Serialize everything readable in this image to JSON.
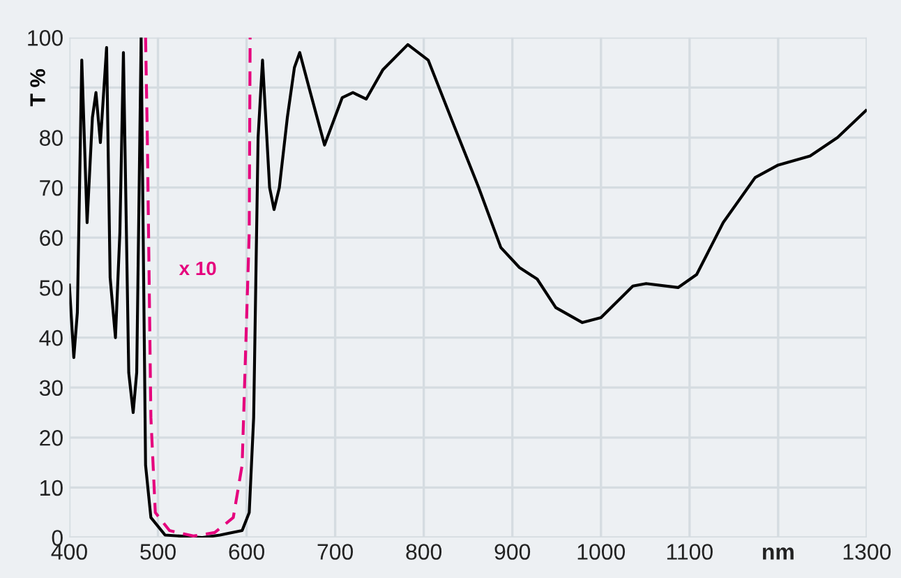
{
  "chart_data": {
    "type": "line",
    "ylabel": "T %",
    "xlim": [
      400,
      1300
    ],
    "ylim": [
      0,
      100
    ],
    "xticks": [
      400,
      500,
      600,
      700,
      800,
      900,
      1000,
      1100,
      {
        "value": 1200,
        "label": "nm"
      },
      1300
    ],
    "yticks": [
      0,
      10,
      20,
      30,
      40,
      50,
      60,
      70,
      80,
      {
        "value": 90,
        "label": null
      },
      100
    ],
    "grid": true,
    "legend": false,
    "marker": "none",
    "series": [
      {
        "color": "#000000",
        "line_style": "solid",
        "x": [
          400,
          405,
          409,
          414,
          420,
          426,
          430,
          435,
          442,
          446,
          452,
          457,
          461,
          467,
          472,
          476,
          481,
          486,
          492,
          508,
          550,
          570,
          595,
          603,
          608,
          613,
          618,
          626,
          631,
          637,
          646,
          654,
          660,
          672,
          688,
          708,
          720,
          735,
          754,
          782,
          805,
          835,
          862,
          887,
          908,
          928,
          949,
          979,
          1000,
          1036,
          1051,
          1087,
          1108,
          1138,
          1174,
          1200,
          1236,
          1267,
          1299
        ],
        "values": [
          50.5,
          36,
          45,
          95.5,
          63,
          84,
          89,
          79,
          98,
          52,
          40,
          61,
          97,
          33,
          25,
          33,
          100,
          14.5,
          4,
          0.5,
          0,
          0.5,
          1.4,
          5,
          24,
          80,
          95.5,
          70,
          65.6,
          70,
          84,
          94,
          97,
          89,
          78.5,
          88,
          89,
          87.7,
          93.6,
          98.6,
          95.5,
          82,
          70,
          58,
          54,
          51.7,
          46,
          43,
          44,
          50.3,
          50.8,
          50,
          52.6,
          63,
          72,
          74.5,
          76.3,
          80,
          85.4
        ]
      },
      {
        "name": "x 10",
        "color": "#e5007d",
        "line_style": "dashed",
        "x": [
          486,
          488,
          492,
          497,
          513,
          540,
          564,
          585,
          595,
          603,
          604
        ],
        "values": [
          100,
          80,
          24,
          5,
          1.4,
          0.3,
          1,
          4,
          14.5,
          61,
          100
        ]
      }
    ]
  }
}
